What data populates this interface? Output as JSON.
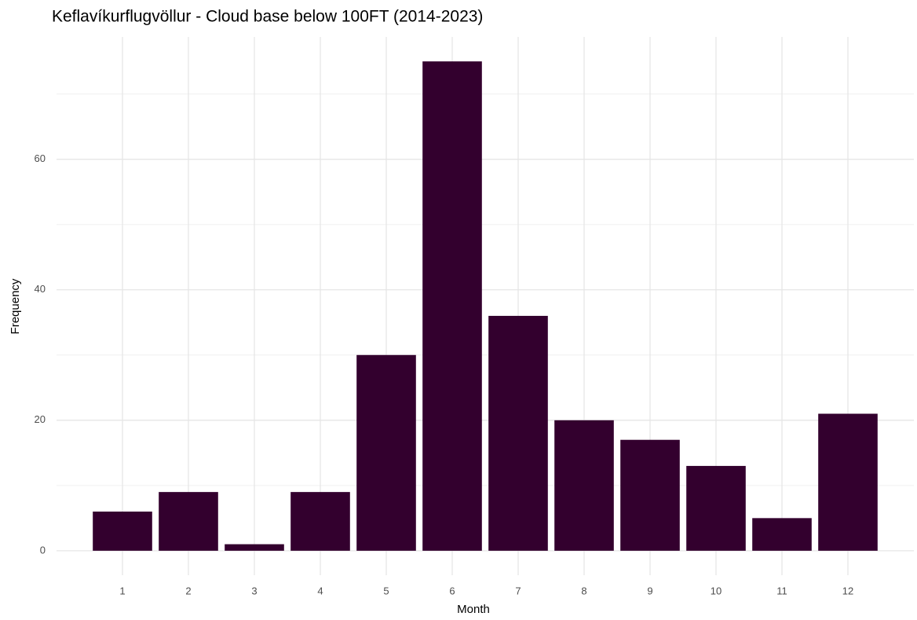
{
  "chart_data": {
    "type": "bar",
    "title": "Keflavíkurflugvöllur - Cloud base below 100FT (2014-2023)",
    "x_label": "Month",
    "y_label": "Frequency",
    "categories": [
      "1",
      "2",
      "3",
      "4",
      "5",
      "6",
      "7",
      "8",
      "9",
      "10",
      "11",
      "12"
    ],
    "values": [
      6,
      9,
      1,
      9,
      30,
      75,
      36,
      20,
      17,
      13,
      5,
      21
    ],
    "color": "#33002e",
    "ylim": [
      -3.75,
      78.75
    ],
    "yticks": [
      0,
      20,
      40,
      60
    ],
    "minor_yticks": [
      10,
      30,
      50,
      70
    ],
    "grid": true
  }
}
